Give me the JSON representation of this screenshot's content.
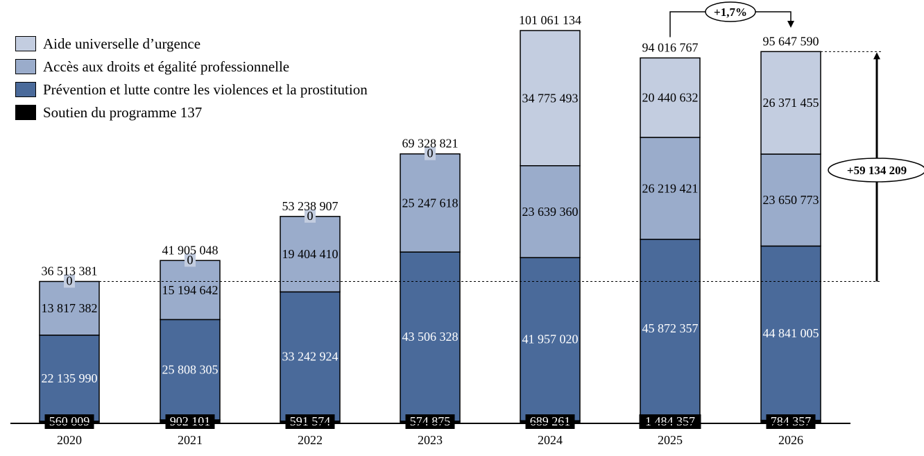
{
  "colors": {
    "aide": "#c3cde0",
    "acces": "#9aaccb",
    "prevention": "#4a6a9a",
    "soutien": "#000000"
  },
  "legend": [
    {
      "label": "Aide universelle d’urgence",
      "color": "#c3cde0"
    },
    {
      "label": "Accès aux droits et égalité professionnelle",
      "color": "#9aaccb"
    },
    {
      "label": "Prévention et lutte contre les violences et la prostitution",
      "color": "#4a6a9a"
    },
    {
      "label": "Soutien du programme 137",
      "color": "#000000"
    }
  ],
  "chart_data": {
    "type": "bar",
    "stacked": true,
    "categories": [
      "2020",
      "2021",
      "2022",
      "2023",
      "2024",
      "2025",
      "2026"
    ],
    "series": [
      {
        "name": "Soutien du programme 137",
        "values": [
          560009,
          902101,
          591574,
          574875,
          689261,
          1484357,
          784357
        ],
        "labels": [
          "560 009",
          "902 101",
          "591 574",
          "574 875",
          "689 261",
          "1 484 357",
          "784 357"
        ]
      },
      {
        "name": "Prévention et lutte contre les violences et la prostitution",
        "values": [
          22135990,
          25808305,
          33242924,
          43506328,
          41957020,
          45872357,
          44841005
        ],
        "labels": [
          "22 135 990",
          "25 808 305",
          "33 242 924",
          "43 506 328",
          "41 957 020",
          "45 872 357",
          "44 841 005"
        ]
      },
      {
        "name": "Accès aux droits et égalité professionnelle",
        "values": [
          13817382,
          15194642,
          19404410,
          25247618,
          23639360,
          26219421,
          23650773
        ],
        "labels": [
          "13 817 382",
          "15 194 642",
          "19 404 410",
          "25 247 618",
          "23 639 360",
          "26 219 421",
          "23 650 773"
        ]
      },
      {
        "name": "Aide universelle d’urgence",
        "values": [
          0,
          0,
          0,
          0,
          34775493,
          20440632,
          26371455
        ],
        "labels": [
          "0",
          "0",
          "0",
          "0",
          "34 775 493",
          "20 440 632",
          "26 371 455"
        ]
      }
    ],
    "totals": [
      36513381,
      41905048,
      53238907,
      69328821,
      101061134,
      94016767,
      95647590
    ],
    "total_labels": [
      "36 513 381",
      "41 905 048",
      "53 238 907",
      "69 328 821",
      "101 061 134",
      "94 016 767",
      "95 647 590"
    ],
    "annotations": {
      "yoy_change": "+1,7%",
      "total_change": "+59 134 209"
    },
    "ylim": [
      0,
      101061134
    ],
    "grid": false,
    "legend_position": "top-left"
  }
}
